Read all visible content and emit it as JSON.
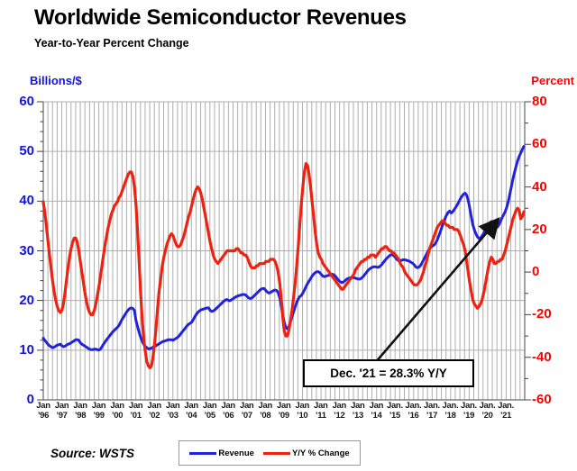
{
  "title": "Worldwide Semiconductor Revenues",
  "subtitle": "Year-to-Year Percent Change",
  "left_axis": {
    "label": "Billions/$",
    "color": "#1414e0",
    "ticks": [
      0,
      10,
      20,
      30,
      40,
      50,
      60
    ]
  },
  "right_axis": {
    "label": "Percent",
    "color": "#ff0000",
    "ticks": [
      80,
      60,
      40,
      20,
      0,
      -20,
      -40,
      -60
    ]
  },
  "x_axis": {
    "labels": [
      "Jan|’96",
      "Jan|’97",
      "Jan|’98",
      "Jan|’99",
      "Jan|’00",
      "Jan|’01",
      "Jan|’02",
      "Jan|’03",
      "Jan|’04",
      "Jan|’05",
      "Jan|’06",
      "Jan|’07",
      "Jan|’08",
      "Jan|’09",
      "Jan|’10",
      "Jan|’11",
      "Jan|’12",
      "Jan|’13",
      "Jan|’14",
      "Jan.|’15",
      "Jan.|’16",
      "Jan.|’17",
      "Jan.|’18",
      "Jan.|’19",
      "Jan.|’20",
      "Jan.|’21"
    ]
  },
  "annotation": {
    "text": "Dec. '21 = 28.3% Y/Y"
  },
  "legend": [
    {
      "label": "Revenue",
      "color": "#2222dd"
    },
    {
      "label": "Y/Y % Change",
      "color": "#ee2211"
    }
  ],
  "source": "Source: WSTS",
  "chart_data": {
    "type": "line",
    "title": "Worldwide Semiconductor Revenues",
    "subtitle": "Year-to-Year Percent Change",
    "frequency": "monthly",
    "x_start": "1996-01",
    "x_end": "2021-12",
    "years": [
      1996,
      1997,
      1998,
      1999,
      2000,
      2001,
      2002,
      2003,
      2004,
      2005,
      2006,
      2007,
      2008,
      2009,
      2010,
      2011,
      2012,
      2013,
      2014,
      2015,
      2016,
      2017,
      2018,
      2019,
      2020,
      2021
    ],
    "left_ylabel": "Billions/$",
    "left_ylim": [
      0,
      60
    ],
    "right_ylabel": "Percent",
    "right_ylim": [
      -60,
      80
    ],
    "grid": "vertical quarterly gridlines; horizontal gridlines every 10 ($B)",
    "legend_position": "bottom-center",
    "callout": {
      "label": "Dec. '21 = 28.3% Y/Y",
      "month": "2021-12",
      "value_pct": 28.3
    },
    "series": [
      {
        "name": "Revenue",
        "axis": "left",
        "unit": "billions USD (3-mo avg, estimated from plot)",
        "color": "#2222dd",
        "values_by_year": [
          [
            12.4,
            12.0,
            11.6,
            11.2,
            10.9,
            10.7,
            10.5,
            10.6,
            10.8,
            11.0,
            11.1,
            11.2
          ],
          [
            10.9,
            10.7,
            10.8,
            11.0,
            11.2,
            11.3,
            11.5,
            11.7,
            11.9,
            12.1,
            12.1,
            12.0
          ],
          [
            11.5,
            11.2,
            11.0,
            10.8,
            10.6,
            10.4,
            10.2,
            10.1,
            10.1,
            10.2,
            10.2,
            10.1
          ],
          [
            10.0,
            10.2,
            10.7,
            11.2,
            11.7,
            12.1,
            12.5,
            12.9,
            13.3,
            13.7,
            14.0,
            14.3
          ],
          [
            14.6,
            15.0,
            15.6,
            16.2,
            16.7,
            17.2,
            17.7,
            18.1,
            18.4,
            18.5,
            18.4,
            18.0
          ],
          [
            16.0,
            14.8,
            13.6,
            12.6,
            11.8,
            11.2,
            10.8,
            10.5,
            10.3,
            10.3,
            10.4,
            10.6
          ],
          [
            10.8,
            10.9,
            11.1,
            11.3,
            11.5,
            11.7,
            11.8,
            11.9,
            12.0,
            12.1,
            12.1,
            12.1
          ],
          [
            12.0,
            12.2,
            12.4,
            12.6,
            12.9,
            13.3,
            13.7,
            14.1,
            14.5,
            14.9,
            15.2,
            15.4
          ],
          [
            15.6,
            16.1,
            16.7,
            17.2,
            17.6,
            17.9,
            18.1,
            18.2,
            18.3,
            18.4,
            18.5,
            18.5
          ],
          [
            18.0,
            17.8,
            17.9,
            18.1,
            18.4,
            18.7,
            19.0,
            19.3,
            19.6,
            19.9,
            20.1,
            20.2
          ],
          [
            20.0,
            20.0,
            20.2,
            20.4,
            20.6,
            20.8,
            20.9,
            21.0,
            21.1,
            21.2,
            21.2,
            21.1
          ],
          [
            20.8,
            20.5,
            20.4,
            20.5,
            20.8,
            21.1,
            21.4,
            21.7,
            22.0,
            22.3,
            22.4,
            22.4
          ],
          [
            22.0,
            21.7,
            21.5,
            21.6,
            21.8,
            22.0,
            22.1,
            22.0,
            21.6,
            20.6,
            19.0,
            17.2
          ],
          [
            15.5,
            14.5,
            14.3,
            14.8,
            15.7,
            16.7,
            17.7,
            18.7,
            19.6,
            20.3,
            20.8,
            21.0
          ],
          [
            21.5,
            22.1,
            22.8,
            23.4,
            23.9,
            24.4,
            24.9,
            25.3,
            25.6,
            25.8,
            25.8,
            25.6
          ],
          [
            25.2,
            24.9,
            24.8,
            24.9,
            25.0,
            25.1,
            25.2,
            25.3,
            25.2,
            24.9,
            24.5,
            24.1
          ],
          [
            23.8,
            23.6,
            23.7,
            23.9,
            24.2,
            24.4,
            24.5,
            24.6,
            24.6,
            24.6,
            24.5,
            24.4
          ],
          [
            24.3,
            24.3,
            24.5,
            24.8,
            25.2,
            25.6,
            26.0,
            26.3,
            26.5,
            26.7,
            26.8,
            26.8
          ],
          [
            26.7,
            26.7,
            26.9,
            27.2,
            27.6,
            28.0,
            28.4,
            28.7,
            29.0,
            29.2,
            29.2,
            29.0
          ],
          [
            28.6,
            28.2,
            28.0,
            28.0,
            28.1,
            28.2,
            28.2,
            28.1,
            28.0,
            27.9,
            27.7,
            27.5
          ],
          [
            27.2,
            26.8,
            26.6,
            26.7,
            27.0,
            27.5,
            28.1,
            28.7,
            29.3,
            29.9,
            30.4,
            30.8
          ],
          [
            31.0,
            31.2,
            31.6,
            32.2,
            33.0,
            33.9,
            34.8,
            35.7,
            36.5,
            37.2,
            37.7,
            38.0
          ],
          [
            37.6,
            37.9,
            38.3,
            38.8,
            39.3,
            39.9,
            40.5,
            41.0,
            41.4,
            41.6,
            41.2,
            40.2
          ],
          [
            38.6,
            36.9,
            35.3,
            34.2,
            33.4,
            32.8,
            32.5,
            32.6,
            33.0,
            33.5,
            34.1,
            34.6
          ],
          [
            35.2,
            35.6,
            35.9,
            35.7,
            35.0,
            34.6,
            34.8,
            35.3,
            36.0,
            36.7,
            37.3,
            37.9
          ],
          [
            38.8,
            40.0,
            41.5,
            43.0,
            44.5,
            45.8,
            47.0,
            48.1,
            49.0,
            49.7,
            50.4,
            51.0
          ]
        ]
      },
      {
        "name": "Y/Y % Change",
        "axis": "right",
        "unit": "percent (estimated from plot)",
        "color": "#ee2211",
        "values_by_year": [
          [
            33,
            28,
            22,
            15,
            8,
            2,
            -4,
            -9,
            -13,
            -16,
            -18,
            -19
          ],
          [
            -18,
            -15,
            -10,
            -4,
            2,
            7,
            11,
            14,
            16,
            16,
            14,
            10
          ],
          [
            5,
            0,
            -5,
            -10,
            -14,
            -17,
            -19,
            -20,
            -20,
            -18,
            -15,
            -11
          ],
          [
            -7,
            -2,
            3,
            8,
            13,
            17,
            21,
            24,
            27,
            29,
            31,
            32
          ],
          [
            33,
            35,
            36,
            38,
            40,
            42,
            44,
            46,
            47,
            47,
            45,
            40
          ],
          [
            32,
            20,
            5,
            -10,
            -22,
            -31,
            -37,
            -42,
            -44,
            -45,
            -44,
            -40
          ],
          [
            -34,
            -26,
            -17,
            -9,
            -3,
            3,
            7,
            10,
            13,
            15,
            17,
            18
          ],
          [
            17,
            15,
            13,
            12,
            12,
            13,
            15,
            17,
            20,
            23,
            26,
            28
          ],
          [
            31,
            34,
            37,
            39,
            40,
            39,
            37,
            34,
            30,
            26,
            22,
            18
          ],
          [
            14,
            11,
            8,
            6,
            5,
            4,
            5,
            6,
            7,
            8,
            9,
            10
          ],
          [
            10,
            10,
            10,
            10,
            10,
            11,
            11,
            10,
            9,
            9,
            8,
            8
          ],
          [
            7,
            5,
            3,
            2,
            2,
            2,
            3,
            3,
            4,
            4,
            4,
            4
          ],
          [
            5,
            5,
            5,
            6,
            6,
            6,
            5,
            3,
            0,
            -5,
            -12,
            -21
          ],
          [
            -28,
            -30,
            -30,
            -27,
            -23,
            -18,
            -12,
            -5,
            3,
            12,
            22,
            32
          ],
          [
            40,
            47,
            51,
            50,
            46,
            40,
            33,
            26,
            19,
            13,
            9,
            7
          ],
          [
            6,
            4,
            3,
            2,
            1,
            0,
            -1,
            -2,
            -3,
            -4,
            -5,
            -6
          ],
          [
            -7,
            -8,
            -8,
            -7,
            -6,
            -5,
            -4,
            -3,
            -2,
            -1,
            1,
            2
          ],
          [
            3,
            4,
            5,
            5,
            6,
            6,
            7,
            7,
            8,
            8,
            8,
            7
          ],
          [
            8,
            9,
            10,
            11,
            11,
            12,
            12,
            11,
            10,
            10,
            9,
            9
          ],
          [
            8,
            7,
            6,
            4,
            3,
            2,
            0,
            -1,
            -2,
            -3,
            -4,
            -5
          ],
          [
            -6,
            -6,
            -6,
            -5,
            -4,
            -2,
            0,
            3,
            5,
            8,
            11,
            13
          ],
          [
            15,
            17,
            19,
            21,
            22,
            23,
            24,
            24,
            23,
            22,
            22,
            21
          ],
          [
            21,
            21,
            20,
            20,
            20,
            19,
            17,
            15,
            13,
            10,
            5,
            0
          ],
          [
            -5,
            -9,
            -13,
            -15,
            -16,
            -17,
            -16,
            -15,
            -13,
            -10,
            -6,
            -2
          ],
          [
            2,
            5,
            7,
            6,
            4,
            4,
            5,
            5,
            6,
            6,
            8,
            10
          ],
          [
            13,
            16,
            19,
            22,
            25,
            27,
            29,
            30,
            29,
            25,
            26,
            28.3
          ]
        ]
      }
    ]
  }
}
